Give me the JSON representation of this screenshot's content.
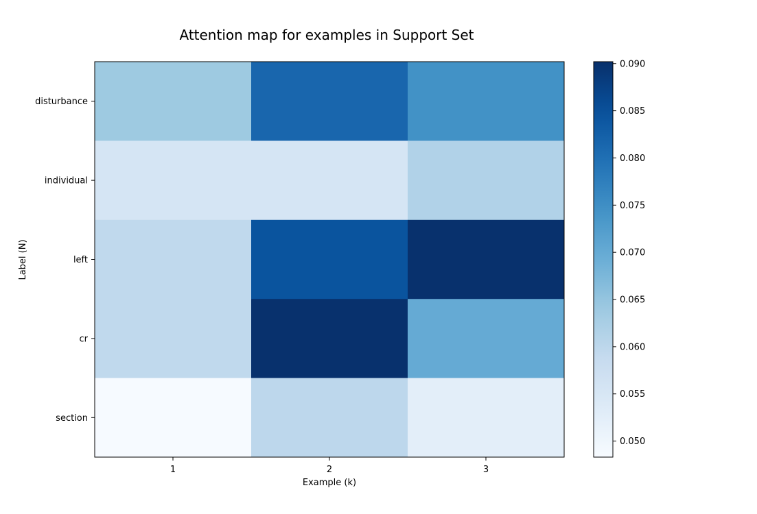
{
  "chart_data": {
    "type": "heatmap",
    "title": "Attention map for examples in Support Set",
    "xlabel": "Example (k)",
    "ylabel": "Label (N)",
    "x_categories": [
      "1",
      "2",
      "3"
    ],
    "y_categories": [
      "disturbance",
      "individual",
      "left",
      "cr",
      "section"
    ],
    "values": [
      [
        0.064,
        0.0815,
        0.0745
      ],
      [
        0.0555,
        0.0555,
        0.0615
      ],
      [
        0.0595,
        0.0845,
        0.09
      ],
      [
        0.0595,
        0.09,
        0.07
      ],
      [
        0.0485,
        0.06,
        0.0525
      ]
    ],
    "colormap": "Blues",
    "colorbar": {
      "range": [
        0.0483,
        0.0902
      ],
      "ticks": [
        "0.050",
        "0.055",
        "0.060",
        "0.065",
        "0.070",
        "0.075",
        "0.080",
        "0.085",
        "0.090"
      ]
    }
  }
}
